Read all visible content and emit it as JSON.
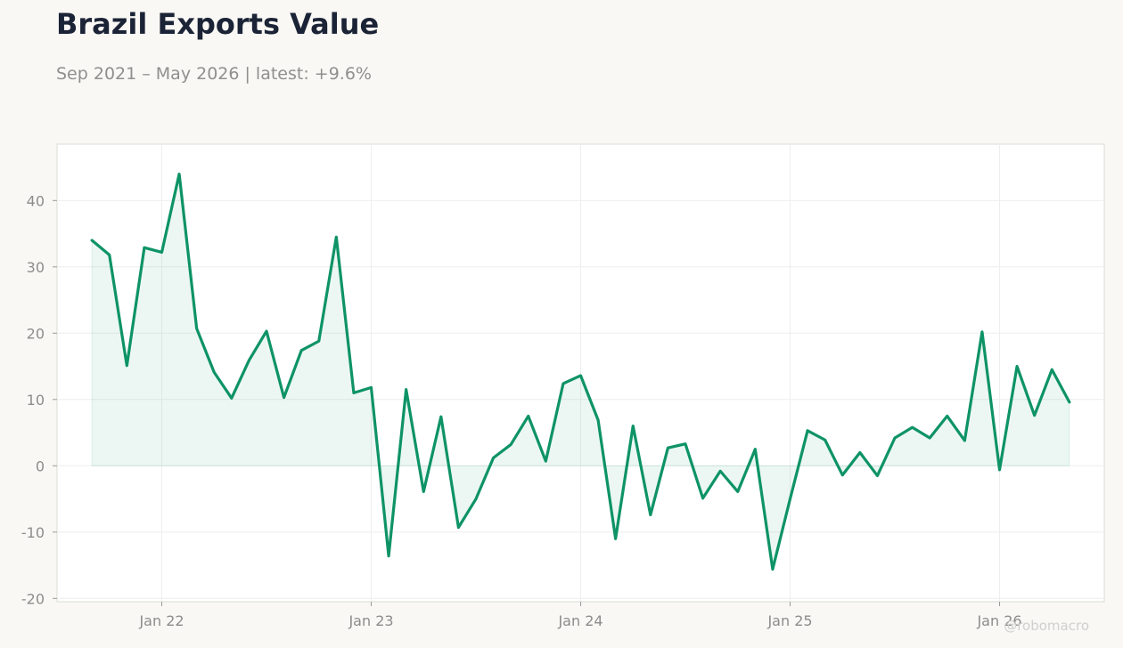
{
  "header": {
    "title": "Brazil Exports Value",
    "subtitle": "Sep 2021 – May 2026 | latest: +9.6%"
  },
  "watermark": "@robomacro",
  "colors": {
    "background": "#f9f8f4",
    "plot_background": "#ffffff",
    "line": "#0e9367",
    "fill": "#0e9367",
    "grid": "#eeeeee",
    "axis_text": "#8c8c8c",
    "title": "#1b2336"
  },
  "chart_data": {
    "type": "area",
    "title": "Brazil Exports Value",
    "subtitle": "Sep 2021 – May 2026 | latest: +9.6%",
    "xlabel": "",
    "ylabel": "",
    "x_ticks": [
      "Jan 22",
      "Jan 23",
      "Jan 24",
      "Jan 25",
      "Jan 26"
    ],
    "y_ticks": [
      -20,
      -10,
      0,
      10,
      20,
      30,
      40
    ],
    "ylim": [
      -20.5,
      48.5
    ],
    "xlim": [
      "2021-07-01",
      "2026-07-01"
    ],
    "grid": true,
    "legend": "none",
    "series": [
      {
        "x": [
          "2021-09",
          "2021-10",
          "2021-11",
          "2021-12",
          "2022-01",
          "2022-02",
          "2022-03",
          "2022-04",
          "2022-05",
          "2022-06",
          "2022-07",
          "2022-08",
          "2022-09",
          "2022-10",
          "2022-11",
          "2022-12",
          "2023-01",
          "2023-02",
          "2023-03",
          "2023-04",
          "2023-05",
          "2023-06",
          "2023-07",
          "2023-08",
          "2023-09",
          "2023-10",
          "2023-11",
          "2023-12",
          "2024-01",
          "2024-02",
          "2024-03",
          "2024-04",
          "2024-05",
          "2024-06",
          "2024-07",
          "2024-08",
          "2024-09",
          "2024-10",
          "2024-11",
          "2024-12",
          "2025-01",
          "2025-02",
          "2025-03",
          "2025-04",
          "2025-05",
          "2025-06",
          "2025-07",
          "2025-08",
          "2025-09",
          "2025-10",
          "2025-11",
          "2025-12",
          "2026-01",
          "2026-02",
          "2026-03",
          "2026-04",
          "2026-05"
        ],
        "values": [
          34.0,
          31.8,
          15.1,
          32.9,
          32.2,
          44.0,
          20.7,
          14.1,
          10.2,
          15.9,
          20.3,
          10.3,
          17.4,
          18.8,
          34.5,
          11.0,
          11.8,
          -13.6,
          11.5,
          -3.9,
          7.4,
          -9.3,
          -5.0,
          1.2,
          3.2,
          7.5,
          0.7,
          12.4,
          13.6,
          6.9,
          -11.0,
          6.0,
          -7.4,
          2.7,
          3.3,
          -4.9,
          -0.8,
          -3.9,
          2.5,
          -15.6,
          -5.0,
          5.3,
          3.9,
          -1.4,
          2.0,
          -1.5,
          4.2,
          5.8,
          4.2,
          7.5,
          3.8,
          20.2,
          -0.6,
          15.0,
          7.6,
          14.5,
          9.6
        ]
      }
    ]
  }
}
